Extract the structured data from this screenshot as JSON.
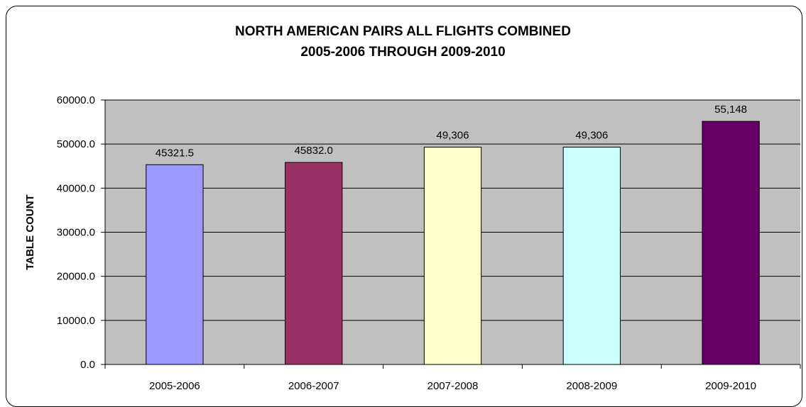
{
  "chart_data": {
    "type": "bar",
    "title_lines": [
      "NORTH AMERICAN PAIRS ALL FLIGHTS COMBINED",
      "2005-2006 THROUGH 2009-2010"
    ],
    "xlabel": "",
    "ylabel": "TABLE COUNT",
    "categories": [
      "2005-2006",
      "2006-2007",
      "2007-2008",
      "2008-2009",
      "2009-2010"
    ],
    "values": [
      45321.5,
      45832.0,
      49306,
      49306,
      55148
    ],
    "data_labels": [
      "45321.5",
      "45832.0",
      "49,306",
      "49,306",
      "55,148"
    ],
    "bar_colors": [
      "#9999ff",
      "#993366",
      "#ffffcc",
      "#ccffff",
      "#660066"
    ],
    "ylim": [
      0,
      60000
    ],
    "yticks": [
      0,
      10000,
      20000,
      30000,
      40000,
      50000,
      60000
    ],
    "ytick_labels": [
      "0.0",
      "10000.0",
      "20000.0",
      "30000.0",
      "40000.0",
      "50000.0",
      "60000.0"
    ],
    "grid": true,
    "plot_background": "#c0c0c0",
    "legend": "none"
  }
}
